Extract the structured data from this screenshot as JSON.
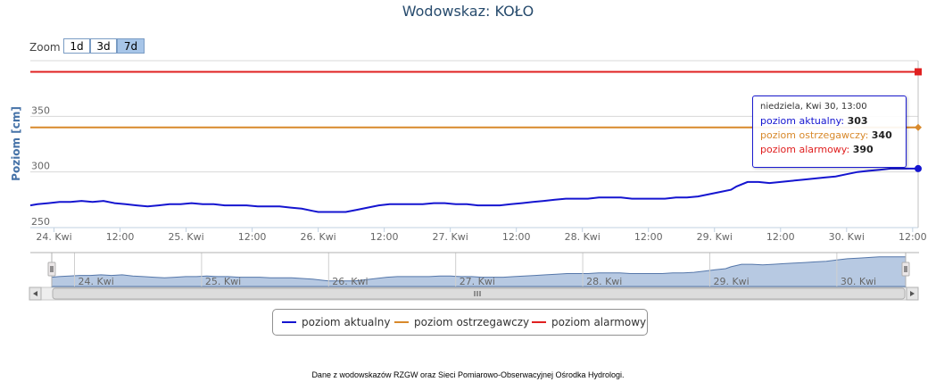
{
  "title": "Wodowskaz: KOŁO",
  "zoom": {
    "label": "Zoom",
    "buttons": [
      "1d",
      "3d",
      "7d"
    ],
    "active": "7d"
  },
  "y_axis_label": "Poziom [cm]",
  "colors": {
    "actual": "#1515d0",
    "warning": "#d8892b",
    "alarm": "#e02020",
    "navigator_fill": "#b7c9e2"
  },
  "tooltip": {
    "date": "niedziela, Kwi 30, 13:00",
    "rows": [
      {
        "label": "poziom aktualny: ",
        "value": "303"
      },
      {
        "label": "poziom ostrzegawczy: ",
        "value": "340"
      },
      {
        "label": "poziom alarmowy: ",
        "value": "390"
      }
    ]
  },
  "legend": [
    "poziom aktualny",
    "poziom ostrzegawczy",
    "poziom alarmowy"
  ],
  "footer": "Dane z wodowskazów RZGW oraz Sieci Pomiarowo-Obserwacyjnej Ośrodka Hydrologi.",
  "chart_data": {
    "type": "line",
    "x_unit_hours_from": "24. Kwi 00:00",
    "ylabel": "Poziom [cm]",
    "ylim": [
      250,
      400
    ],
    "yticks": [
      250,
      300,
      350
    ],
    "xticks": [
      {
        "t": 0,
        "label": "24. Kwi"
      },
      {
        "t": 12,
        "label": "12:00"
      },
      {
        "t": 24,
        "label": "25. Kwi"
      },
      {
        "t": 36,
        "label": "12:00"
      },
      {
        "t": 48,
        "label": "26. Kwi"
      },
      {
        "t": 60,
        "label": "12:00"
      },
      {
        "t": 72,
        "label": "27. Kwi"
      },
      {
        "t": 84,
        "label": "12:00"
      },
      {
        "t": 96,
        "label": "28. Kwi"
      },
      {
        "t": 108,
        "label": "12:00"
      },
      {
        "t": 120,
        "label": "29. Kwi"
      },
      {
        "t": 132,
        "label": "12:00"
      },
      {
        "t": 144,
        "label": "30. Kwi"
      },
      {
        "t": 156,
        "label": "12:00"
      }
    ],
    "navigator_ticks": [
      "24. Kwi",
      "25. Kwi",
      "26. Kwi",
      "27. Kwi",
      "28. Kwi",
      "29. Kwi",
      "30. Kwi"
    ],
    "xlim_hours": [
      -4.3,
      157
    ],
    "series": [
      {
        "name": "poziom aktualny",
        "x": [
          -4.3,
          -3,
          -1,
          1,
          3,
          5,
          7,
          9,
          11,
          13,
          15,
          17,
          19,
          21,
          23,
          25,
          27,
          29,
          31,
          33,
          35,
          37,
          39,
          41,
          43,
          45,
          47,
          48,
          49,
          50,
          51,
          53,
          55,
          57,
          59,
          61,
          63,
          65,
          67,
          69,
          71,
          73,
          75,
          77,
          79,
          81,
          83,
          85,
          87,
          89,
          91,
          93,
          95,
          97,
          99,
          101,
          103,
          105,
          107,
          109,
          111,
          113,
          115,
          117,
          119,
          121,
          123,
          124,
          126,
          128,
          130,
          132,
          134,
          136,
          138,
          140,
          142,
          144,
          146,
          148,
          150,
          152,
          154,
          156,
          157
        ],
        "y": [
          270,
          271,
          272,
          273,
          273,
          274,
          273,
          274,
          272,
          271,
          270,
          269,
          270,
          271,
          271,
          272,
          271,
          271,
          270,
          270,
          270,
          269,
          269,
          269,
          268,
          267,
          265,
          264,
          264,
          264,
          264,
          264,
          266,
          268,
          270,
          271,
          271,
          271,
          271,
          272,
          272,
          271,
          271,
          270,
          270,
          270,
          271,
          272,
          273,
          274,
          275,
          276,
          276,
          276,
          277,
          277,
          277,
          276,
          276,
          276,
          276,
          277,
          277,
          278,
          280,
          282,
          284,
          287,
          291,
          291,
          290,
          291,
          292,
          293,
          294,
          295,
          296,
          298,
          300,
          301,
          302,
          303,
          303,
          303,
          303
        ]
      },
      {
        "name": "poziom ostrzegawczy",
        "x": [
          -4.3,
          157
        ],
        "y": [
          340,
          340
        ]
      },
      {
        "name": "poziom alarmowy",
        "x": [
          -4.3,
          157
        ],
        "y": [
          390,
          390
        ]
      }
    ],
    "highlight": {
      "x": 157,
      "values": [
        303,
        340,
        390
      ]
    }
  }
}
